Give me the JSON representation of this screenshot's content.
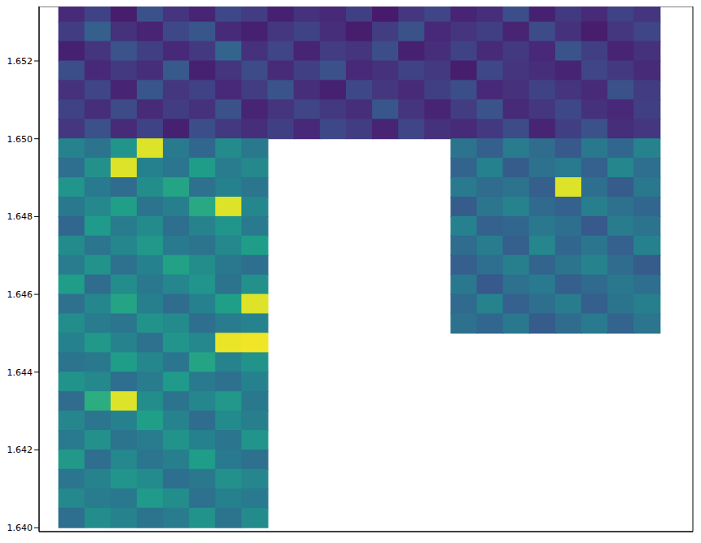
{
  "chart_data": {
    "type": "scatter",
    "tick_labels": "y",
    "color": "viridis",
    "marker": "square",
    "clim": [
      0,
      1
    ],
    "xlim": [
      0,
      1
    ],
    "ylim": [
      1.6399,
      1.6534
    ],
    "yticks": [
      {
        "value": 1.64,
        "label": "1.640"
      },
      1.642,
      1.644,
      1.646,
      1.648,
      {
        "value": 1.65,
        "label": "1.650"
      },
      1.652
    ],
    "rows": [
      {
        "y": 1.65325,
        "x": [
          0.05,
          0.09,
          0.13,
          0.17,
          0.21,
          0.25,
          0.29,
          0.33,
          0.37,
          0.41,
          0.45,
          0.49,
          0.53,
          0.57,
          0.61,
          0.65,
          0.69,
          0.73,
          0.77,
          0.81,
          0.85,
          0.89,
          0.93
        ],
        "values": [
          0.12,
          0.2,
          0.08,
          0.25,
          0.15,
          0.1,
          0.22,
          0.18,
          0.09,
          0.14,
          0.11,
          0.19,
          0.07,
          0.16,
          0.21,
          0.1,
          0.13,
          0.24,
          0.09,
          0.17,
          0.12,
          0.2,
          0.15
        ]
      },
      {
        "y": 1.65275,
        "x": [
          0.05,
          0.09,
          0.13,
          0.17,
          0.21,
          0.25,
          0.29,
          0.33,
          0.37,
          0.41,
          0.45,
          0.49,
          0.53,
          0.57,
          0.61,
          0.65,
          0.69,
          0.73,
          0.77,
          0.81,
          0.85,
          0.89,
          0.93
        ],
        "values": [
          0.18,
          0.3,
          0.14,
          0.1,
          0.22,
          0.27,
          0.12,
          0.09,
          0.16,
          0.2,
          0.13,
          0.08,
          0.18,
          0.25,
          0.11,
          0.15,
          0.19,
          0.1,
          0.23,
          0.14,
          0.08,
          0.16,
          0.21
        ]
      },
      {
        "y": 1.65225,
        "x": [
          0.05,
          0.09,
          0.13,
          0.17,
          0.21,
          0.25,
          0.29,
          0.33,
          0.37,
          0.41,
          0.45,
          0.49,
          0.53,
          0.57,
          0.61,
          0.65,
          0.69,
          0.73,
          0.77,
          0.81,
          0.85,
          0.89,
          0.93
        ],
        "values": [
          0.09,
          0.15,
          0.26,
          0.19,
          0.11,
          0.17,
          0.32,
          0.14,
          0.21,
          0.1,
          0.18,
          0.15,
          0.24,
          0.09,
          0.13,
          0.2,
          0.12,
          0.17,
          0.11,
          0.26,
          0.19,
          0.1,
          0.14
        ]
      },
      {
        "y": 1.65175,
        "x": [
          0.05,
          0.09,
          0.13,
          0.17,
          0.21,
          0.25,
          0.29,
          0.33,
          0.37,
          0.41,
          0.45,
          0.49,
          0.53,
          0.57,
          0.61,
          0.65,
          0.69,
          0.73,
          0.77,
          0.81,
          0.85,
          0.89,
          0.93
        ],
        "values": [
          0.24,
          0.11,
          0.17,
          0.13,
          0.28,
          0.09,
          0.15,
          0.23,
          0.12,
          0.19,
          0.25,
          0.11,
          0.14,
          0.2,
          0.17,
          0.08,
          0.22,
          0.15,
          0.13,
          0.1,
          0.21,
          0.17,
          0.12
        ]
      },
      {
        "y": 1.65125,
        "x": [
          0.05,
          0.09,
          0.13,
          0.17,
          0.21,
          0.25,
          0.29,
          0.33,
          0.37,
          0.41,
          0.45,
          0.49,
          0.53,
          0.57,
          0.61,
          0.65,
          0.69,
          0.73,
          0.77,
          0.81,
          0.85,
          0.89,
          0.93
        ],
        "values": [
          0.14,
          0.21,
          0.1,
          0.27,
          0.16,
          0.2,
          0.11,
          0.18,
          0.26,
          0.13,
          0.09,
          0.22,
          0.16,
          0.12,
          0.19,
          0.24,
          0.11,
          0.14,
          0.2,
          0.15,
          0.12,
          0.25,
          0.18
        ]
      },
      {
        "y": 1.65075,
        "x": [
          0.05,
          0.09,
          0.13,
          0.17,
          0.21,
          0.25,
          0.29,
          0.33,
          0.37,
          0.41,
          0.45,
          0.49,
          0.53,
          0.57,
          0.61,
          0.65,
          0.69,
          0.73,
          0.77,
          0.81,
          0.85,
          0.89,
          0.93
        ],
        "values": [
          0.2,
          0.13,
          0.23,
          0.12,
          0.18,
          0.14,
          0.25,
          0.1,
          0.15,
          0.21,
          0.17,
          0.13,
          0.27,
          0.15,
          0.1,
          0.18,
          0.26,
          0.12,
          0.16,
          0.22,
          0.14,
          0.11,
          0.19
        ]
      },
      {
        "y": 1.65025,
        "x": [
          0.05,
          0.09,
          0.13,
          0.17,
          0.21,
          0.25,
          0.29,
          0.33,
          0.37,
          0.41,
          0.45,
          0.49,
          0.53,
          0.57,
          0.61,
          0.65,
          0.69,
          0.73,
          0.77,
          0.81,
          0.85,
          0.89,
          0.93
        ],
        "values": [
          0.16,
          0.25,
          0.12,
          0.2,
          0.09,
          0.24,
          0.17,
          0.13,
          0.19,
          0.11,
          0.22,
          0.18,
          0.1,
          0.21,
          0.14,
          0.12,
          0.17,
          0.23,
          0.1,
          0.19,
          0.25,
          0.13,
          0.16
        ]
      },
      {
        "y": 1.64975,
        "x": [
          0.05,
          0.09,
          0.13,
          0.17,
          0.21,
          0.25,
          0.29,
          0.33,
          0.65,
          0.69,
          0.73,
          0.77,
          0.81,
          0.85,
          0.89,
          0.93
        ],
        "values": [
          0.45,
          0.38,
          0.52,
          0.95,
          0.41,
          0.33,
          0.48,
          0.4,
          0.38,
          0.3,
          0.42,
          0.35,
          0.28,
          0.4,
          0.33,
          0.45
        ]
      },
      {
        "y": 1.64925,
        "x": [
          0.05,
          0.09,
          0.13,
          0.17,
          0.21,
          0.25,
          0.29,
          0.33,
          0.65,
          0.69,
          0.73,
          0.77,
          0.81,
          0.85,
          0.89,
          0.93
        ],
        "values": [
          0.36,
          0.5,
          0.95,
          0.44,
          0.39,
          0.55,
          0.42,
          0.47,
          0.32,
          0.44,
          0.29,
          0.37,
          0.41,
          0.31,
          0.46,
          0.36
        ]
      },
      {
        "y": 1.64875,
        "x": [
          0.05,
          0.09,
          0.13,
          0.17,
          0.21,
          0.25,
          0.29,
          0.33,
          0.65,
          0.69,
          0.73,
          0.77,
          0.81,
          0.85,
          0.89,
          0.93
        ],
        "values": [
          0.52,
          0.41,
          0.35,
          0.49,
          0.58,
          0.37,
          0.44,
          0.39,
          0.41,
          0.35,
          0.38,
          0.3,
          0.95,
          0.36,
          0.29,
          0.4
        ]
      },
      {
        "y": 1.64825,
        "x": [
          0.05,
          0.09,
          0.13,
          0.17,
          0.21,
          0.25,
          0.29,
          0.33,
          0.65,
          0.69,
          0.73,
          0.77,
          0.81,
          0.85,
          0.89,
          0.93
        ],
        "values": [
          0.4,
          0.47,
          0.56,
          0.38,
          0.43,
          0.6,
          0.95,
          0.46,
          0.29,
          0.39,
          0.45,
          0.34,
          0.31,
          0.43,
          0.37,
          0.33
        ]
      },
      {
        "y": 1.64775,
        "x": [
          0.05,
          0.09,
          0.13,
          0.17,
          0.21,
          0.25,
          0.29,
          0.33,
          0.65,
          0.69,
          0.73,
          0.77,
          0.81,
          0.85,
          0.89,
          0.93
        ],
        "values": [
          0.33,
          0.54,
          0.42,
          0.48,
          0.36,
          0.45,
          0.52,
          0.41,
          0.44,
          0.31,
          0.33,
          0.4,
          0.36,
          0.28,
          0.42,
          0.38
        ]
      },
      {
        "y": 1.64725,
        "x": [
          0.05,
          0.09,
          0.13,
          0.17,
          0.21,
          0.25,
          0.29,
          0.33,
          0.65,
          0.69,
          0.73,
          0.77,
          0.81,
          0.85,
          0.89,
          0.93
        ],
        "values": [
          0.48,
          0.39,
          0.46,
          0.53,
          0.41,
          0.38,
          0.47,
          0.55,
          0.35,
          0.42,
          0.3,
          0.46,
          0.33,
          0.39,
          0.31,
          0.44
        ]
      },
      {
        "y": 1.64675,
        "x": [
          0.05,
          0.09,
          0.13,
          0.17,
          0.21,
          0.25,
          0.29,
          0.33,
          0.65,
          0.69,
          0.73,
          0.77,
          0.81,
          0.85,
          0.89,
          0.93
        ],
        "values": [
          0.42,
          0.51,
          0.37,
          0.44,
          0.57,
          0.49,
          0.4,
          0.36,
          0.3,
          0.36,
          0.43,
          0.32,
          0.38,
          0.45,
          0.35,
          0.29
        ]
      },
      {
        "y": 1.64625,
        "x": [
          0.05,
          0.09,
          0.13,
          0.17,
          0.21,
          0.25,
          0.29,
          0.33,
          0.65,
          0.69,
          0.73,
          0.77,
          0.81,
          0.85,
          0.89,
          0.93
        ],
        "values": [
          0.55,
          0.35,
          0.49,
          0.4,
          0.46,
          0.52,
          0.38,
          0.5,
          0.4,
          0.28,
          0.37,
          0.41,
          0.3,
          0.34,
          0.4,
          0.36
        ]
      },
      {
        "y": 1.64575,
        "x": [
          0.05,
          0.09,
          0.13,
          0.17,
          0.21,
          0.25,
          0.29,
          0.33,
          0.65,
          0.69,
          0.73,
          0.77,
          0.81,
          0.85,
          0.89,
          0.93
        ],
        "values": [
          0.37,
          0.46,
          0.58,
          0.43,
          0.35,
          0.44,
          0.56,
          0.95,
          0.34,
          0.45,
          0.31,
          0.36,
          0.42,
          0.3,
          0.38,
          0.43
        ]
      },
      {
        "y": 1.64525,
        "x": [
          0.05,
          0.09,
          0.13,
          0.17,
          0.21,
          0.25,
          0.29,
          0.33,
          0.65,
          0.69,
          0.73,
          0.77,
          0.81,
          0.85,
          0.89,
          0.93
        ],
        "values": [
          0.49,
          0.42,
          0.39,
          0.51,
          0.48,
          0.36,
          0.42,
          0.45,
          0.37,
          0.33,
          0.4,
          0.29,
          0.35,
          0.41,
          0.32,
          0.39
        ]
      },
      {
        "y": 1.64475,
        "x": [
          0.05,
          0.09,
          0.13,
          0.17,
          0.21,
          0.25,
          0.29,
          0.33
        ],
        "values": [
          0.44,
          0.53,
          0.45,
          0.37,
          0.52,
          0.47,
          0.97,
          0.98
        ]
      },
      {
        "y": 1.64425,
        "x": [
          0.05,
          0.09,
          0.13,
          0.17,
          0.21,
          0.25,
          0.29,
          0.33
        ],
        "values": [
          0.38,
          0.4,
          0.55,
          0.46,
          0.39,
          0.58,
          0.45,
          0.51
        ]
      },
      {
        "y": 1.64375,
        "x": [
          0.05,
          0.09,
          0.13,
          0.17,
          0.21,
          0.25,
          0.29,
          0.33
        ],
        "values": [
          0.51,
          0.47,
          0.36,
          0.42,
          0.54,
          0.41,
          0.37,
          0.44
        ]
      },
      {
        "y": 1.64325,
        "x": [
          0.05,
          0.09,
          0.13,
          0.17,
          0.21,
          0.25,
          0.29,
          0.33
        ],
        "values": [
          0.35,
          0.62,
          0.95,
          0.49,
          0.38,
          0.46,
          0.53,
          0.4
        ]
      },
      {
        "y": 1.64275,
        "x": [
          0.05,
          0.09,
          0.13,
          0.17,
          0.21,
          0.25,
          0.29,
          0.33
        ],
        "values": [
          0.46,
          0.39,
          0.44,
          0.56,
          0.45,
          0.35,
          0.48,
          0.43
        ]
      },
      {
        "y": 1.64225,
        "x": [
          0.05,
          0.09,
          0.13,
          0.17,
          0.21,
          0.25,
          0.29,
          0.33
        ],
        "values": [
          0.41,
          0.5,
          0.38,
          0.42,
          0.51,
          0.44,
          0.39,
          0.52
        ]
      },
      {
        "y": 1.64175,
        "x": [
          0.05,
          0.09,
          0.13,
          0.17,
          0.21,
          0.25,
          0.29,
          0.33
        ],
        "values": [
          0.53,
          0.36,
          0.47,
          0.39,
          0.43,
          0.55,
          0.41,
          0.37
        ]
      },
      {
        "y": 1.64125,
        "x": [
          0.05,
          0.09,
          0.13,
          0.17,
          0.21,
          0.25,
          0.29,
          0.33
        ],
        "values": [
          0.39,
          0.45,
          0.52,
          0.48,
          0.36,
          0.4,
          0.5,
          0.46
        ]
      },
      {
        "y": 1.64075,
        "x": [
          0.05,
          0.09,
          0.13,
          0.17,
          0.21,
          0.25,
          0.29,
          0.33
        ],
        "values": [
          0.47,
          0.42,
          0.4,
          0.54,
          0.49,
          0.37,
          0.44,
          0.41
        ]
      },
      {
        "y": 1.64025,
        "x": [
          0.05,
          0.09,
          0.13,
          0.17,
          0.21,
          0.25,
          0.29,
          0.33
        ],
        "values": [
          0.36,
          0.49,
          0.45,
          0.38,
          0.42,
          0.51,
          0.38,
          0.48
        ]
      }
    ]
  }
}
